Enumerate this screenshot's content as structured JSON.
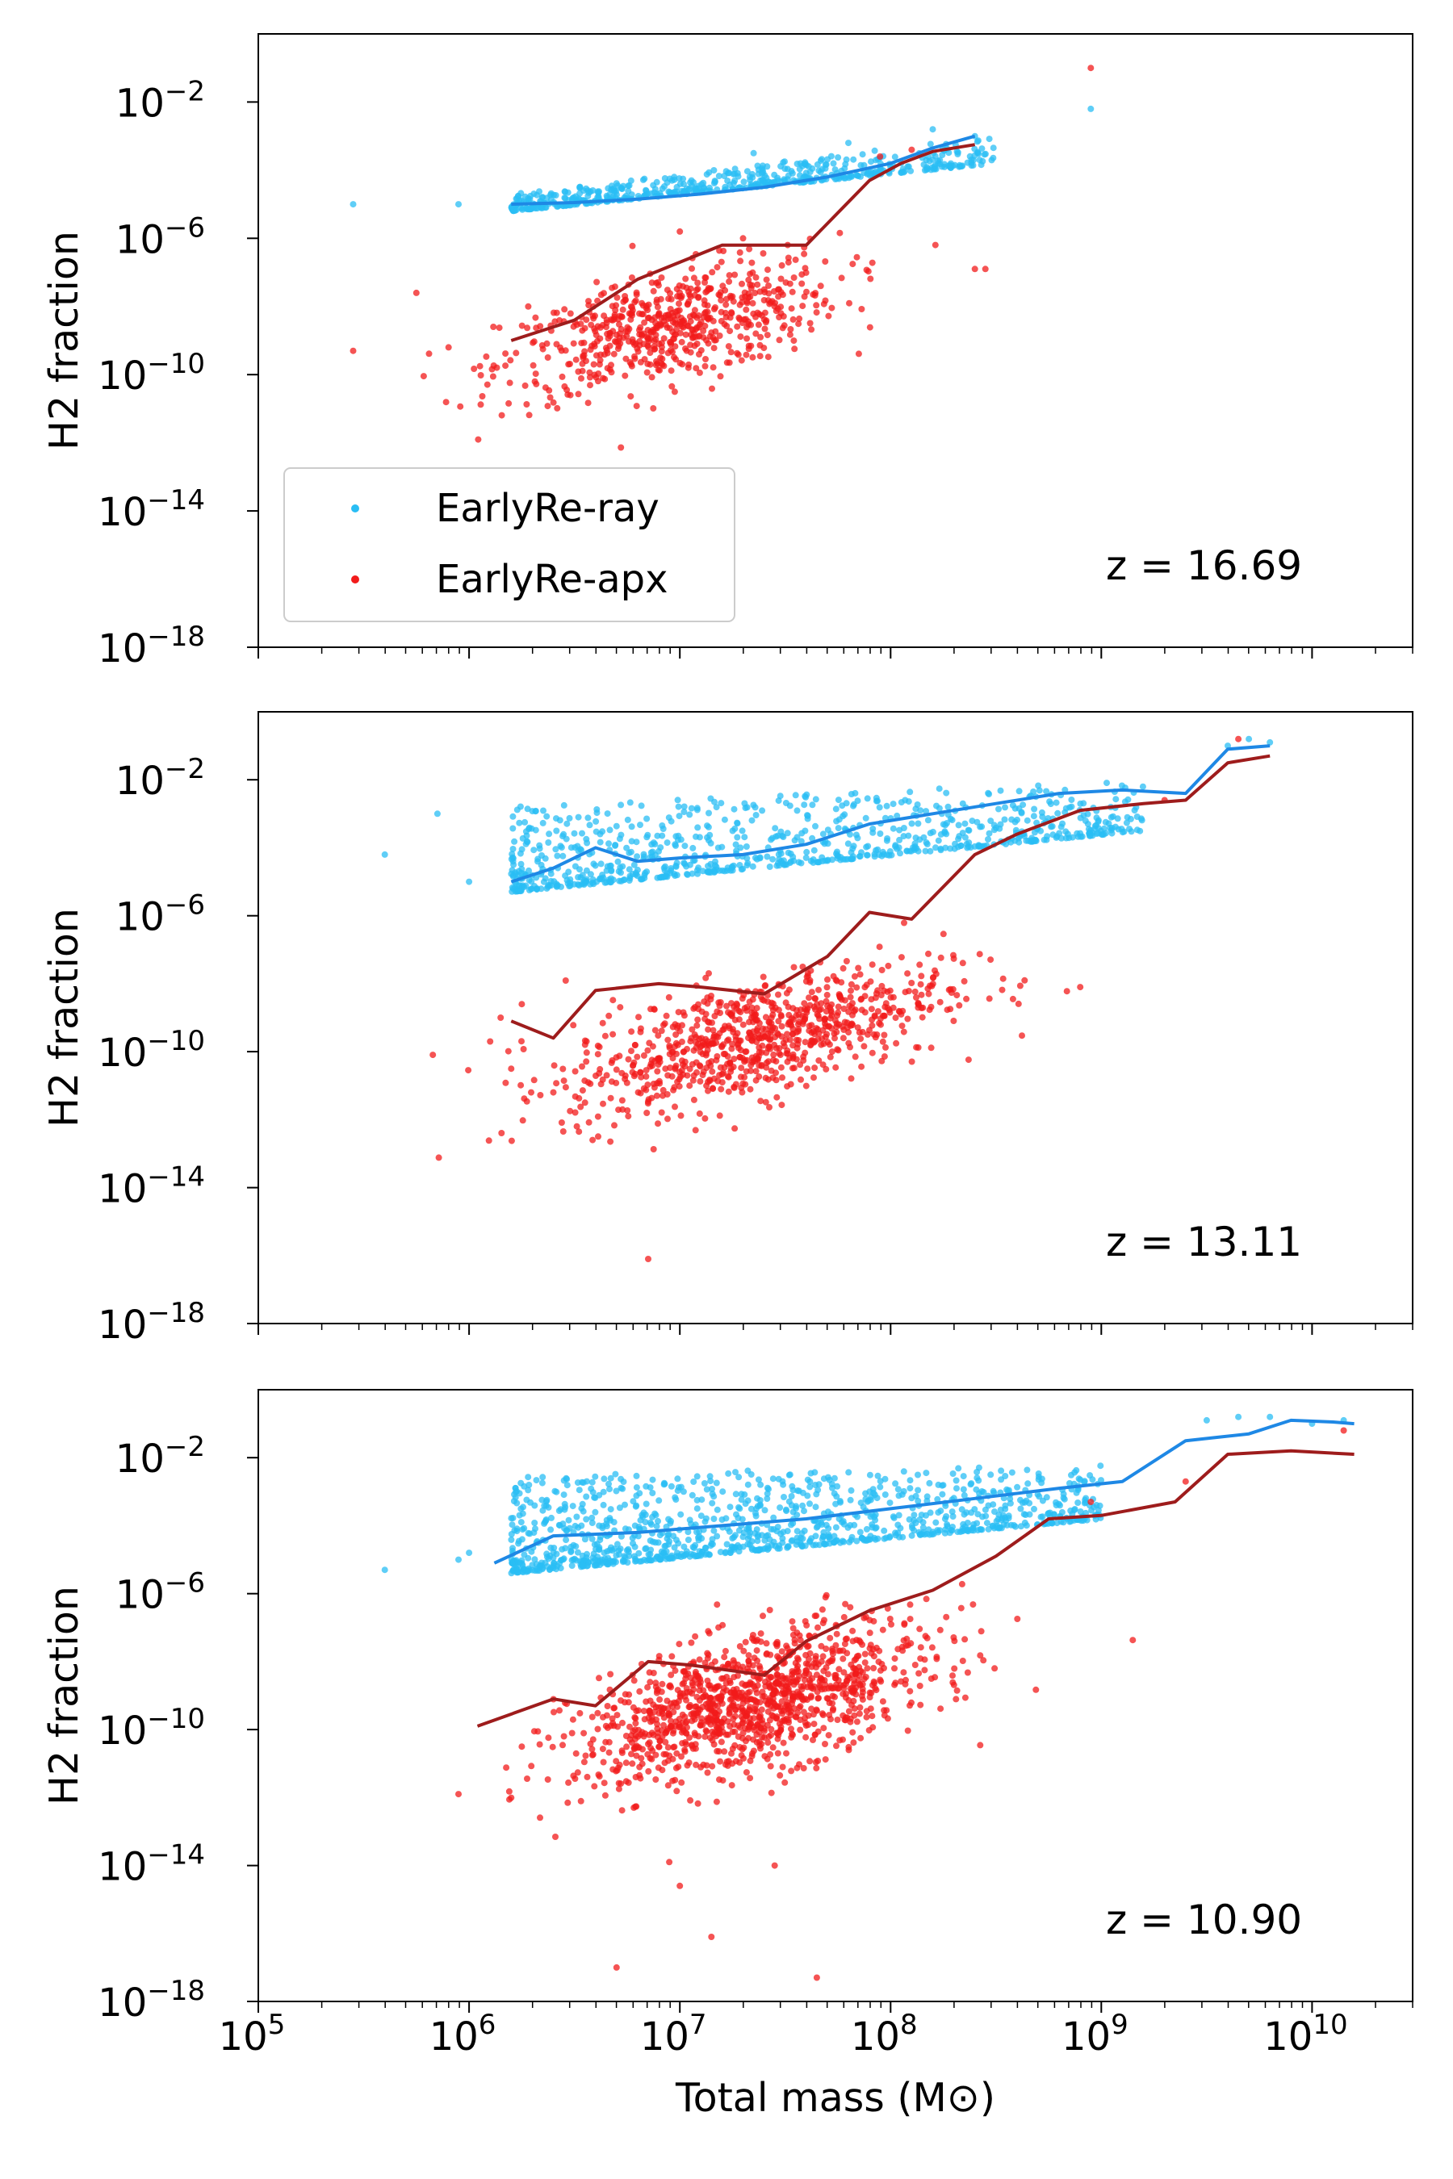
{
  "figure": {
    "xlabel": "Total mass (M⊙)",
    "ylabel": "H2 fraction",
    "legend": {
      "placement": "lower-left of top panel",
      "entries": [
        {
          "label": "EarlyRe-ray",
          "color": "#29bdf4"
        },
        {
          "label": "EarlyRe-apx",
          "color": "#f21b1b"
        }
      ]
    },
    "colors": {
      "ray_points": "#29bdf4",
      "ray_line": "#1e88e5",
      "apx_points": "#f21b1b",
      "apx_line": "#9e1c1c"
    }
  },
  "chart_data": [
    {
      "type": "scatter",
      "panel": "top",
      "annotation": "z = 16.69",
      "xscale": "log",
      "yscale": "log",
      "xlim": [
        100000,
        30000000000
      ],
      "ylim": [
        1e-18,
        1
      ],
      "xticks": [
        100000,
        1000000,
        10000000,
        100000000,
        1000000000,
        10000000000
      ],
      "yticks": [
        1e-18,
        1e-14,
        1e-10,
        1e-06,
        0.01
      ],
      "series": [
        {
          "name": "EarlyRe-ray",
          "kind": "points",
          "band": {
            "xlog": [
              6.2,
              8.5
            ],
            "ylog_low": [
              -5.2,
              -3.8
            ],
            "ylog_high": [
              -4.7,
              -3.0
            ],
            "count": 550
          },
          "outliers": [
            [
              5.45,
              -5.0
            ],
            [
              5.95,
              -5.0
            ],
            [
              7.35,
              -3.5
            ],
            [
              7.8,
              -3.2
            ],
            [
              8.2,
              -2.8
            ],
            [
              8.4,
              -3.0
            ],
            [
              8.95,
              -2.2
            ]
          ]
        },
        {
          "name": "EarlyRe-apx",
          "kind": "points",
          "cluster": {
            "x_mean_log": 6.95,
            "x_sd_log": 0.4,
            "y_mean_log": -8.6,
            "y_sd_log": 0.8,
            "slope": 1.4,
            "count": 650
          },
          "outliers": [
            [
              5.45,
              -9.3
            ],
            [
              5.75,
              -7.6
            ],
            [
              8.4,
              -6.9
            ],
            [
              8.45,
              -6.9
            ],
            [
              8.95,
              -1.0
            ],
            [
              8.1,
              -3.4
            ],
            [
              7.95,
              -3.6
            ],
            [
              7.3,
              -6.0
            ],
            [
              7.0,
              -5.8
            ]
          ]
        },
        {
          "name": "EarlyRe-ray median",
          "kind": "line",
          "x_log": [
            6.2,
            6.5,
            6.8,
            7.1,
            7.4,
            7.7,
            8.0,
            8.2,
            8.4
          ],
          "y_log": [
            -5.0,
            -4.95,
            -4.85,
            -4.7,
            -4.5,
            -4.2,
            -3.8,
            -3.35,
            -3.0
          ]
        },
        {
          "name": "EarlyRe-apx median",
          "kind": "line",
          "x_log": [
            6.2,
            6.5,
            6.8,
            7.2,
            7.6,
            7.9,
            8.05,
            8.2,
            8.4
          ],
          "y_log": [
            -9.0,
            -8.4,
            -7.2,
            -6.2,
            -6.2,
            -4.3,
            -3.8,
            -3.45,
            -3.25
          ]
        }
      ]
    },
    {
      "type": "scatter",
      "panel": "middle",
      "annotation": "z = 13.11",
      "xscale": "log",
      "yscale": "log",
      "xlim": [
        100000,
        30000000000
      ],
      "ylim": [
        1e-18,
        1
      ],
      "xticks": [
        100000,
        1000000,
        10000000,
        100000000,
        1000000000,
        10000000000
      ],
      "yticks": [
        1e-18,
        1e-14,
        1e-10,
        1e-06,
        0.01
      ],
      "series": [
        {
          "name": "EarlyRe-ray",
          "kind": "points",
          "band": {
            "xlog": [
              6.2,
              9.2
            ],
            "ylog_low": [
              -5.3,
              -3.5
            ],
            "ylog_high": [
              -2.8,
              -2.0
            ],
            "count": 850
          },
          "outliers": [
            [
              5.6,
              -4.2
            ],
            [
              5.85,
              -3.0
            ],
            [
              6.0,
              -5.0
            ],
            [
              9.6,
              -1.0
            ],
            [
              9.7,
              -0.8
            ],
            [
              9.8,
              -0.9
            ]
          ]
        },
        {
          "name": "EarlyRe-apx",
          "kind": "points",
          "cluster": {
            "x_mean_log": 7.35,
            "x_sd_log": 0.45,
            "y_mean_log": -9.6,
            "y_sd_log": 0.85,
            "slope": 1.5,
            "count": 850
          },
          "outliers": [
            [
              6.1,
              -9.7
            ],
            [
              6.15,
              -9.0
            ],
            [
              6.2,
              -10.5
            ],
            [
              6.25,
              -8.6
            ],
            [
              6.4,
              -11.2
            ],
            [
              6.55,
              -11.5
            ],
            [
              6.85,
              -16.1
            ],
            [
              8.9,
              -8.1
            ],
            [
              9.3,
              -2.6
            ],
            [
              9.65,
              -0.8
            ]
          ]
        },
        {
          "name": "EarlyRe-ray median",
          "kind": "line",
          "x_log": [
            6.2,
            6.4,
            6.6,
            6.8,
            7.0,
            7.3,
            7.6,
            7.9,
            8.2,
            8.5,
            8.8,
            9.1,
            9.4,
            9.6,
            9.8
          ],
          "y_log": [
            -5.0,
            -4.6,
            -4.0,
            -4.4,
            -4.3,
            -4.2,
            -3.9,
            -3.3,
            -3.0,
            -2.7,
            -2.4,
            -2.3,
            -2.4,
            -1.1,
            -1.0
          ]
        },
        {
          "name": "EarlyRe-apx median",
          "kind": "line",
          "x_log": [
            6.2,
            6.4,
            6.6,
            6.9,
            7.1,
            7.4,
            7.7,
            7.9,
            8.1,
            8.4,
            8.6,
            8.9,
            9.2,
            9.4,
            9.6,
            9.8
          ],
          "y_log": [
            -9.1,
            -9.6,
            -8.2,
            -8.0,
            -8.1,
            -8.3,
            -7.2,
            -5.9,
            -6.1,
            -4.2,
            -3.6,
            -2.9,
            -2.7,
            -2.6,
            -1.5,
            -1.3
          ]
        }
      ]
    },
    {
      "type": "scatter",
      "panel": "bottom",
      "annotation": "z = 10.90",
      "xscale": "log",
      "yscale": "log",
      "xlim": [
        100000,
        30000000000
      ],
      "ylim": [
        1e-18,
        1
      ],
      "xticks": [
        100000,
        1000000,
        10000000,
        100000000,
        1000000000,
        10000000000
      ],
      "yticks": [
        1e-18,
        1e-14,
        1e-10,
        1e-06,
        0.01
      ],
      "series": [
        {
          "name": "EarlyRe-ray",
          "kind": "points",
          "band": {
            "xlog": [
              6.2,
              9.0
            ],
            "ylog_low": [
              -5.4,
              -3.8
            ],
            "ylog_high": [
              -2.5,
              -2.2
            ],
            "count": 1100
          },
          "outliers": [
            [
              5.6,
              -5.3
            ],
            [
              5.95,
              -5.0
            ],
            [
              6.0,
              -4.8
            ],
            [
              9.5,
              -0.9
            ],
            [
              9.65,
              -0.8
            ],
            [
              9.8,
              -0.8
            ],
            [
              10.0,
              -1.0
            ],
            [
              10.15,
              -0.9
            ]
          ]
        },
        {
          "name": "EarlyRe-apx",
          "kind": "points",
          "cluster": {
            "x_mean_log": 7.35,
            "x_sd_log": 0.42,
            "y_mean_log": -9.2,
            "y_sd_log": 0.95,
            "slope": 1.5,
            "count": 1200
          },
          "outliers": [
            [
              5.95,
              -11.9
            ],
            [
              6.25,
              -10.5
            ],
            [
              6.45,
              -10.2
            ],
            [
              6.95,
              -13.9
            ],
            [
              7.0,
              -14.6
            ],
            [
              7.15,
              -16.1
            ],
            [
              7.45,
              -14.0
            ],
            [
              6.7,
              -17.0
            ],
            [
              7.65,
              -17.3
            ],
            [
              8.95,
              -3.3
            ],
            [
              9.4,
              -2.7
            ],
            [
              10.15,
              -1.2
            ]
          ]
        },
        {
          "name": "EarlyRe-ray median",
          "kind": "line",
          "x_log": [
            6.12,
            6.4,
            6.8,
            7.2,
            7.6,
            8.0,
            8.4,
            8.8,
            9.1,
            9.4,
            9.7,
            9.9,
            10.1,
            10.2
          ],
          "y_log": [
            -5.1,
            -4.3,
            -4.2,
            -4.0,
            -3.8,
            -3.5,
            -3.2,
            -2.9,
            -2.7,
            -1.5,
            -1.3,
            -0.9,
            -0.95,
            -1.0
          ]
        },
        {
          "name": "EarlyRe-apx median",
          "kind": "line",
          "x_log": [
            6.04,
            6.4,
            6.6,
            6.85,
            7.05,
            7.4,
            7.6,
            7.9,
            8.2,
            8.5,
            8.75,
            9.0,
            9.35,
            9.6,
            9.9,
            10.2
          ],
          "y_log": [
            -9.9,
            -9.1,
            -9.3,
            -8.0,
            -8.1,
            -8.4,
            -7.4,
            -6.5,
            -5.9,
            -4.9,
            -3.8,
            -3.7,
            -3.3,
            -1.9,
            -1.8,
            -1.9
          ]
        }
      ]
    }
  ]
}
